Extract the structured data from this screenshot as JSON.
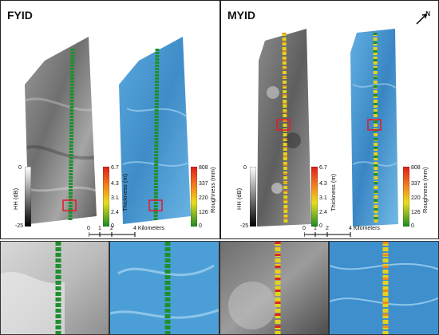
{
  "panels": {
    "fyid": {
      "title": "FYID"
    },
    "myid": {
      "title": "MYID"
    }
  },
  "colorbars": {
    "hh": {
      "title": "HH (dB)",
      "max": "0",
      "min": "-25"
    },
    "thickness": {
      "title": "Thickness (m)",
      "ticks": [
        "6.7",
        "4.3",
        "3.1",
        "2.4",
        "0"
      ]
    },
    "roughness": {
      "title": "Roughness (mm)",
      "ticks": [
        "808",
        "337",
        "220",
        "126",
        "0"
      ]
    }
  },
  "scale_bar": {
    "ticks": [
      "0",
      "1",
      "2",
      "4 Kilometers"
    ]
  },
  "north_arrow": {
    "label": "N"
  },
  "colors": {
    "track_green": "#1f8f2e",
    "track_yellow": "#e5d21a",
    "track_orange": "#f08a1c",
    "track_red": "#d9261c",
    "highlight_box": "#e6192b",
    "sar_gray": "#8a8a8a",
    "roughness_blue": "#4c9fd6"
  }
}
